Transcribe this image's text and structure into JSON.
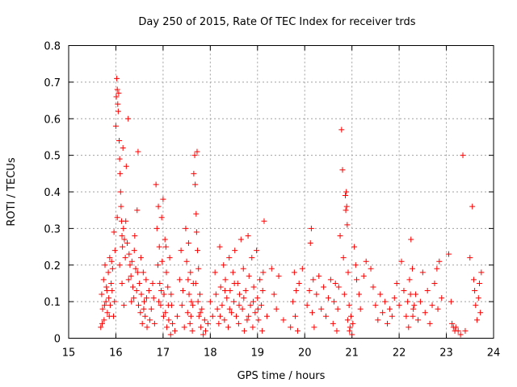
{
  "chart_data": {
    "type": "scatter",
    "title": "Day 250 of 2015, Rate Of TEC Index for receiver trds",
    "xlabel": "GPS time / hours",
    "ylabel": "ROTI / TECUs",
    "xlim": [
      15,
      24
    ],
    "ylim": [
      0,
      0.8
    ],
    "xticks": [
      "15",
      "16",
      "17",
      "18",
      "19",
      "20",
      "21",
      "22",
      "23",
      "24"
    ],
    "yticks": [
      "0",
      "0.1",
      "0.2",
      "0.3",
      "0.4",
      "0.5",
      "0.6",
      "0.7",
      "0.8"
    ],
    "grid": true,
    "marker": "plus",
    "color": "#ff0000",
    "points": [
      [
        15.68,
        0.03
      ],
      [
        15.7,
        0.12
      ],
      [
        15.72,
        0.08
      ],
      [
        15.74,
        0.16
      ],
      [
        15.75,
        0.05
      ],
      [
        15.77,
        0.2
      ],
      [
        15.79,
        0.1
      ],
      [
        15.8,
        0.14
      ],
      [
        15.82,
        0.07
      ],
      [
        15.84,
        0.18
      ],
      [
        15.85,
        0.11
      ],
      [
        15.87,
        0.22
      ],
      [
        15.88,
        0.09
      ],
      [
        15.9,
        0.15
      ],
      [
        15.92,
        0.13
      ],
      [
        15.93,
        0.19
      ],
      [
        15.95,
        0.06
      ],
      [
        15.96,
        0.29
      ],
      [
        15.98,
        0.24
      ],
      [
        16.0,
        0.58
      ],
      [
        16.01,
        0.66
      ],
      [
        16.02,
        0.71
      ],
      [
        16.03,
        0.68
      ],
      [
        16.04,
        0.64
      ],
      [
        16.05,
        0.62
      ],
      [
        16.06,
        0.67
      ],
      [
        16.07,
        0.54
      ],
      [
        16.08,
        0.49
      ],
      [
        16.09,
        0.45
      ],
      [
        16.1,
        0.4
      ],
      [
        16.11,
        0.36
      ],
      [
        16.12,
        0.32
      ],
      [
        16.13,
        0.28
      ],
      [
        16.14,
        0.25
      ],
      [
        16.15,
        0.52
      ],
      [
        16.16,
        0.3
      ],
      [
        16.18,
        0.27
      ],
      [
        16.2,
        0.22
      ],
      [
        16.22,
        0.47
      ],
      [
        16.24,
        0.26
      ],
      [
        16.26,
        0.6
      ],
      [
        16.28,
        0.23
      ],
      [
        16.3,
        0.2
      ],
      [
        16.32,
        0.17
      ],
      [
        16.34,
        0.21
      ],
      [
        16.36,
        0.14
      ],
      [
        16.38,
        0.11
      ],
      [
        16.4,
        0.28
      ],
      [
        16.42,
        0.19
      ],
      [
        16.44,
        0.13
      ],
      [
        16.45,
        0.35
      ],
      [
        16.47,
        0.51
      ],
      [
        16.48,
        0.09
      ],
      [
        16.5,
        0.15
      ],
      [
        16.52,
        0.07
      ],
      [
        16.54,
        0.12
      ],
      [
        16.56,
        0.04
      ],
      [
        16.58,
        0.18
      ],
      [
        16.6,
        0.1
      ],
      [
        16.62,
        0.06
      ],
      [
        16.64,
        0.16
      ],
      [
        16.66,
        0.03
      ],
      [
        16.7,
        0.13
      ],
      [
        16.72,
        0.05
      ],
      [
        16.75,
        0.08
      ],
      [
        16.78,
        0.15
      ],
      [
        16.8,
        0.11
      ],
      [
        16.82,
        0.04
      ],
      [
        16.85,
        0.42
      ],
      [
        16.87,
        0.3
      ],
      [
        16.89,
        0.2
      ],
      [
        16.9,
        0.36
      ],
      [
        16.92,
        0.25
      ],
      [
        16.93,
        0.15
      ],
      [
        16.95,
        0.09
      ],
      [
        16.97,
        0.33
      ],
      [
        16.98,
        0.21
      ],
      [
        17.0,
        0.38
      ],
      [
        17.02,
        0.12
      ],
      [
        17.04,
        0.27
      ],
      [
        17.05,
        0.07
      ],
      [
        17.07,
        0.18
      ],
      [
        17.08,
        0.03
      ],
      [
        17.1,
        0.14
      ],
      [
        17.12,
        0.05
      ],
      [
        17.14,
        0.22
      ],
      [
        17.16,
        0.01
      ],
      [
        17.18,
        0.09
      ],
      [
        17.2,
        0.04
      ],
      [
        17.25,
        0.02
      ],
      [
        17.3,
        0.06
      ],
      [
        17.35,
        0.16
      ],
      [
        17.38,
        0.24
      ],
      [
        17.4,
        0.09
      ],
      [
        17.42,
        0.13
      ],
      [
        17.45,
        0.03
      ],
      [
        17.48,
        0.3
      ],
      [
        17.5,
        0.21
      ],
      [
        17.52,
        0.07
      ],
      [
        17.54,
        0.26
      ],
      [
        17.55,
        0.12
      ],
      [
        17.57,
        0.04
      ],
      [
        17.58,
        0.18
      ],
      [
        17.6,
        0.1
      ],
      [
        17.62,
        0.02
      ],
      [
        17.64,
        0.15
      ],
      [
        17.65,
        0.45
      ],
      [
        17.67,
        0.5
      ],
      [
        17.68,
        0.42
      ],
      [
        17.7,
        0.34
      ],
      [
        17.71,
        0.29
      ],
      [
        17.72,
        0.51
      ],
      [
        17.73,
        0.24
      ],
      [
        17.75,
        0.19
      ],
      [
        17.76,
        0.06
      ],
      [
        17.78,
        0.12
      ],
      [
        17.8,
        0.03
      ],
      [
        17.82,
        0.08
      ],
      [
        17.85,
        0.01
      ],
      [
        17.88,
        0.05
      ],
      [
        17.9,
        0.02
      ],
      [
        17.95,
        0.04
      ],
      [
        18.0,
        0.1
      ],
      [
        18.05,
        0.06
      ],
      [
        18.1,
        0.18
      ],
      [
        18.12,
        0.12
      ],
      [
        18.15,
        0.08
      ],
      [
        18.18,
        0.04
      ],
      [
        18.2,
        0.25
      ],
      [
        18.22,
        0.14
      ],
      [
        18.25,
        0.09
      ],
      [
        18.28,
        0.2
      ],
      [
        18.3,
        0.05
      ],
      [
        18.32,
        0.16
      ],
      [
        18.35,
        0.11
      ],
      [
        18.38,
        0.03
      ],
      [
        18.4,
        0.22
      ],
      [
        18.42,
        0.13
      ],
      [
        18.45,
        0.07
      ],
      [
        18.48,
        0.18
      ],
      [
        18.5,
        0.1
      ],
      [
        18.52,
        0.24
      ],
      [
        18.55,
        0.06
      ],
      [
        18.58,
        0.15
      ],
      [
        18.6,
        0.04
      ],
      [
        18.62,
        0.12
      ],
      [
        18.65,
        0.27
      ],
      [
        18.68,
        0.08
      ],
      [
        18.7,
        0.19
      ],
      [
        18.72,
        0.02
      ],
      [
        18.75,
        0.13
      ],
      [
        18.78,
        0.05
      ],
      [
        18.8,
        0.28
      ],
      [
        18.82,
        0.17
      ],
      [
        18.85,
        0.09
      ],
      [
        18.88,
        0.22
      ],
      [
        18.9,
        0.03
      ],
      [
        18.92,
        0.14
      ],
      [
        18.95,
        0.07
      ],
      [
        18.98,
        0.24
      ],
      [
        19.0,
        0.11
      ],
      [
        19.02,
        0.05
      ],
      [
        19.05,
        0.16
      ],
      [
        19.08,
        0.09
      ],
      [
        19.1,
        0.02
      ],
      [
        19.12,
        0.18
      ],
      [
        19.14,
        0.32
      ],
      [
        19.2,
        0.06
      ],
      [
        19.3,
        0.19
      ],
      [
        19.35,
        0.12
      ],
      [
        19.4,
        0.08
      ],
      [
        19.45,
        0.17
      ],
      [
        19.55,
        0.05
      ],
      [
        19.7,
        0.03
      ],
      [
        19.75,
        0.1
      ],
      [
        19.78,
        0.18
      ],
      [
        19.8,
        0.06
      ],
      [
        19.82,
        0.13
      ],
      [
        19.85,
        0.02
      ],
      [
        19.88,
        0.15
      ],
      [
        19.95,
        0.19
      ],
      [
        20.05,
        0.09
      ],
      [
        20.1,
        0.13
      ],
      [
        20.12,
        0.26
      ],
      [
        20.14,
        0.3
      ],
      [
        20.16,
        0.07
      ],
      [
        20.18,
        0.16
      ],
      [
        20.2,
        0.03
      ],
      [
        20.25,
        0.12
      ],
      [
        20.3,
        0.17
      ],
      [
        20.35,
        0.08
      ],
      [
        20.4,
        0.14
      ],
      [
        20.45,
        0.06
      ],
      [
        20.5,
        0.11
      ],
      [
        20.55,
        0.16
      ],
      [
        20.6,
        0.04
      ],
      [
        20.62,
        0.1
      ],
      [
        20.65,
        0.15
      ],
      [
        20.68,
        0.02
      ],
      [
        20.7,
        0.08
      ],
      [
        20.72,
        0.14
      ],
      [
        20.75,
        0.28
      ],
      [
        20.78,
        0.57
      ],
      [
        20.8,
        0.46
      ],
      [
        20.82,
        0.22
      ],
      [
        20.84,
        0.12
      ],
      [
        20.86,
        0.39
      ],
      [
        20.88,
        0.4
      ],
      [
        20.89,
        0.36
      ],
      [
        20.9,
        0.31
      ],
      [
        20.92,
        0.18
      ],
      [
        20.94,
        0.09
      ],
      [
        20.96,
        0.03
      ],
      [
        20.98,
        0.06
      ],
      [
        21.0,
        0.01
      ],
      [
        21.05,
        0.25
      ],
      [
        21.08,
        0.2
      ],
      [
        21.1,
        0.16
      ],
      [
        21.15,
        0.12
      ],
      [
        21.18,
        0.08
      ],
      [
        21.25,
        0.17
      ],
      [
        21.3,
        0.21
      ],
      [
        21.4,
        0.19
      ],
      [
        21.45,
        0.14
      ],
      [
        21.5,
        0.09
      ],
      [
        21.55,
        0.05
      ],
      [
        21.6,
        0.12
      ],
      [
        21.65,
        0.07
      ],
      [
        21.7,
        0.1
      ],
      [
        21.75,
        0.04
      ],
      [
        21.8,
        0.08
      ],
      [
        21.85,
        0.06
      ],
      [
        21.9,
        0.11
      ],
      [
        21.95,
        0.15
      ],
      [
        22.0,
        0.09
      ],
      [
        22.05,
        0.21
      ],
      [
        22.1,
        0.13
      ],
      [
        22.15,
        0.06
      ],
      [
        22.18,
        0.1
      ],
      [
        22.2,
        0.03
      ],
      [
        22.22,
        0.16
      ],
      [
        22.25,
        0.27
      ],
      [
        22.28,
        0.19
      ],
      [
        22.3,
        0.08
      ],
      [
        22.35,
        0.12
      ],
      [
        22.4,
        0.05
      ],
      [
        22.45,
        0.1
      ],
      [
        22.5,
        0.18
      ],
      [
        22.55,
        0.07
      ],
      [
        22.6,
        0.13
      ],
      [
        22.65,
        0.04
      ],
      [
        22.7,
        0.09
      ],
      [
        22.75,
        0.15
      ],
      [
        22.8,
        0.19
      ],
      [
        22.82,
        0.08
      ],
      [
        22.85,
        0.21
      ],
      [
        22.9,
        0.11
      ],
      [
        23.05,
        0.23
      ],
      [
        23.1,
        0.1
      ],
      [
        23.12,
        0.04
      ],
      [
        23.15,
        0.03
      ],
      [
        23.18,
        0.02
      ],
      [
        23.2,
        0.03
      ],
      [
        23.25,
        0.02
      ],
      [
        23.3,
        0.01
      ],
      [
        23.35,
        0.5
      ],
      [
        23.4,
        0.02
      ],
      [
        23.5,
        0.22
      ],
      [
        23.55,
        0.36
      ],
      [
        23.58,
        0.16
      ],
      [
        23.6,
        0.13
      ],
      [
        23.62,
        0.09
      ],
      [
        23.65,
        0.05
      ],
      [
        23.68,
        0.11
      ],
      [
        23.7,
        0.15
      ],
      [
        23.72,
        0.07
      ],
      [
        23.74,
        0.18
      ],
      [
        15.71,
        0.04
      ],
      [
        15.76,
        0.09
      ],
      [
        15.81,
        0.13
      ],
      [
        15.86,
        0.06
      ],
      [
        15.91,
        0.21
      ],
      [
        15.97,
        0.1
      ],
      [
        16.03,
        0.33
      ],
      [
        16.08,
        0.2
      ],
      [
        16.13,
        0.15
      ],
      [
        16.17,
        0.09
      ],
      [
        16.21,
        0.32
      ],
      [
        16.27,
        0.16
      ],
      [
        16.33,
        0.1
      ],
      [
        16.39,
        0.24
      ],
      [
        16.46,
        0.18
      ],
      [
        16.53,
        0.22
      ],
      [
        16.59,
        0.08
      ],
      [
        16.65,
        0.11
      ],
      [
        16.91,
        0.1
      ],
      [
        16.96,
        0.13
      ],
      [
        17.01,
        0.06
      ],
      [
        17.06,
        0.25
      ],
      [
        17.11,
        0.09
      ],
      [
        17.17,
        0.12
      ],
      [
        17.53,
        0.16
      ],
      [
        17.59,
        0.06
      ],
      [
        17.63,
        0.09
      ],
      [
        17.69,
        0.15
      ],
      [
        17.74,
        0.1
      ],
      [
        17.79,
        0.07
      ],
      [
        18.21,
        0.06
      ],
      [
        18.31,
        0.13
      ],
      [
        18.41,
        0.08
      ],
      [
        18.51,
        0.15
      ],
      [
        18.61,
        0.09
      ],
      [
        18.71,
        0.11
      ],
      [
        18.81,
        0.06
      ],
      [
        18.91,
        0.1
      ],
      [
        19.01,
        0.08
      ],
      [
        19.11,
        0.13
      ],
      [
        20.87,
        0.35
      ],
      [
        20.91,
        0.05
      ],
      [
        20.95,
        0.02
      ],
      [
        21.02,
        0.04
      ],
      [
        22.24,
        0.12
      ],
      [
        22.29,
        0.06
      ],
      [
        22.32,
        0.09
      ]
    ]
  }
}
